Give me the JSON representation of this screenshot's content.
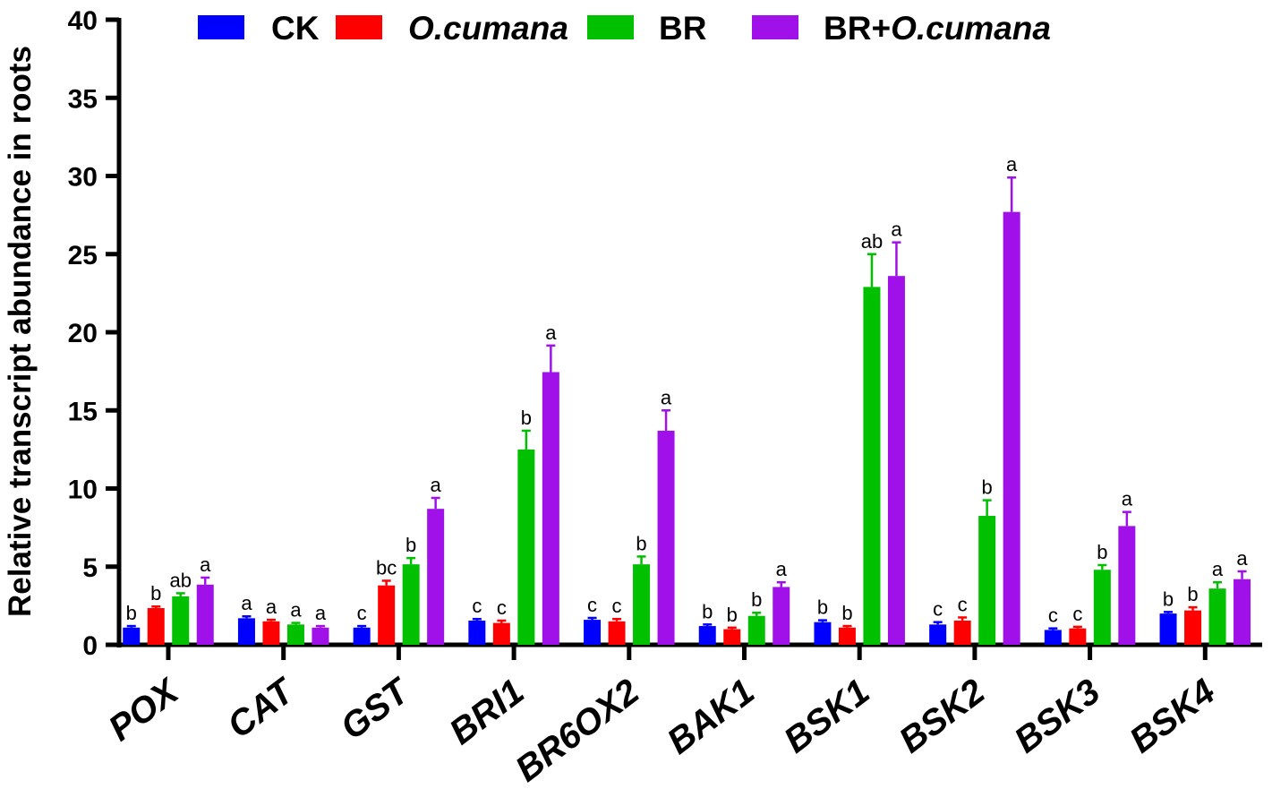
{
  "chart_data": {
    "type": "bar",
    "title": "",
    "xlabel": "",
    "ylabel": "Relative transcript abundance in roots",
    "ylim": [
      0,
      40
    ],
    "yticks": [
      0,
      5,
      10,
      15,
      20,
      25,
      30,
      35,
      40
    ],
    "grid": false,
    "legend_position": "top",
    "categories": [
      "POX",
      "CAT",
      "GST",
      "BRI1",
      "BR6OX2",
      "BAK1",
      "BSK1",
      "BSK2",
      "BSK3",
      "BSK4"
    ],
    "series": [
      {
        "name": "CK",
        "color": "#0000FF",
        "values": [
          1.1,
          1.7,
          1.1,
          1.55,
          1.6,
          1.2,
          1.45,
          1.3,
          0.95,
          2.0
        ],
        "errors": [
          0.1,
          0.12,
          0.1,
          0.1,
          0.12,
          0.1,
          0.12,
          0.15,
          0.1,
          0.1
        ],
        "significance": [
          "b",
          "a",
          "c",
          "c",
          "c",
          "b",
          "b",
          "c",
          "c",
          "b"
        ]
      },
      {
        "name": "O.cumana",
        "color": "#FF0000",
        "values": [
          2.35,
          1.5,
          3.8,
          1.4,
          1.5,
          1.0,
          1.1,
          1.55,
          1.05,
          2.2
        ],
        "errors": [
          0.1,
          0.1,
          0.3,
          0.15,
          0.15,
          0.1,
          0.1,
          0.2,
          0.1,
          0.2
        ],
        "significance": [
          "b",
          "a",
          "bc",
          "c",
          "c",
          "b",
          "b",
          "c",
          "c",
          "b"
        ]
      },
      {
        "name": "BR",
        "color": "#00C000",
        "values": [
          3.1,
          1.3,
          5.15,
          12.5,
          5.15,
          1.85,
          22.9,
          8.25,
          4.8,
          3.6
        ],
        "errors": [
          0.2,
          0.1,
          0.4,
          1.2,
          0.5,
          0.2,
          2.1,
          1.0,
          0.3,
          0.4
        ],
        "significance": [
          "ab",
          "a",
          "b",
          "b",
          "b",
          "b",
          "ab",
          "b",
          "b",
          "a"
        ]
      },
      {
        "name": "BR+O.cumana",
        "color": "#A010E8",
        "values": [
          3.85,
          1.1,
          8.7,
          17.45,
          13.7,
          3.7,
          23.6,
          27.7,
          7.6,
          4.2
        ],
        "errors": [
          0.45,
          0.1,
          0.7,
          1.7,
          1.3,
          0.3,
          2.15,
          2.2,
          0.9,
          0.5
        ],
        "significance": [
          "a",
          "a",
          "a",
          "a",
          "a",
          "a",
          "a",
          "a",
          "a",
          "a"
        ]
      }
    ]
  },
  "legend": {
    "items": [
      {
        "label": "CK",
        "italic_part": ""
      },
      {
        "label": "",
        "italic_part": "O.cumana"
      },
      {
        "label": "BR",
        "italic_part": ""
      },
      {
        "label": "BR+",
        "italic_part": "O.cumana"
      }
    ]
  }
}
